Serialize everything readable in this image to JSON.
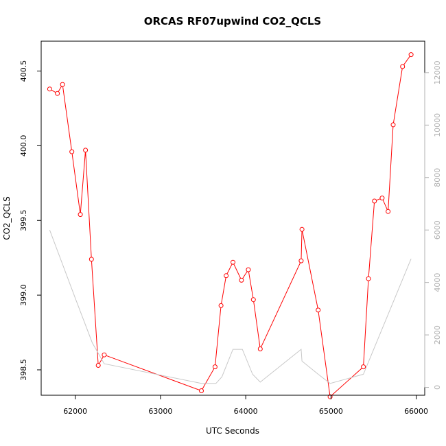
{
  "chart_data": {
    "type": "line",
    "title": "ORCAS RF07upwind CO2_QCLS",
    "xlabel": "UTC Seconds",
    "ylabel": "CO2_QCLS",
    "xlim": [
      61600,
      66100
    ],
    "ylim": [
      398.33,
      400.7
    ],
    "y2lim": [
      -300,
      13200
    ],
    "x_ticks": [
      62000,
      63000,
      64000,
      65000,
      66000
    ],
    "x_tick_labels": [
      "62000",
      "63000",
      "64000",
      "65000",
      "66000"
    ],
    "y_ticks": [
      398.5,
      399.0,
      399.5,
      400.0,
      400.5
    ],
    "y_tick_labels": [
      "398.5",
      "399.0",
      "399.5",
      "400.0",
      "400.5"
    ],
    "y2_ticks": [
      0,
      2000,
      4000,
      6000,
      8000,
      10000,
      12000
    ],
    "y2_tick_labels": [
      "0",
      "2000",
      "4000",
      "6000",
      "8000",
      "10000",
      "12000"
    ],
    "grid": false,
    "legend": "none",
    "colors": {
      "series": "#ff0000",
      "secondary": "#c8c8c8",
      "axis": "#000000",
      "right_axis": "#b0b0b0"
    },
    "series": [
      {
        "axis": "left",
        "style": "line+circle",
        "x": [
          61700,
          61790,
          61850,
          61960,
          62060,
          62120,
          62190,
          62270,
          62340,
          63480,
          63640,
          63710,
          63770,
          63850,
          63950,
          64030,
          64090,
          64170,
          64650,
          64660,
          64850,
          64990,
          65380,
          65440,
          65510,
          65600,
          65670,
          65730,
          65840,
          65940
        ],
        "y": [
          400.38,
          400.35,
          400.41,
          399.96,
          399.54,
          399.97,
          399.24,
          398.53,
          398.6,
          398.36,
          398.52,
          398.93,
          399.13,
          399.22,
          399.1,
          399.17,
          398.97,
          398.64,
          399.23,
          399.44,
          398.9,
          398.32,
          398.52,
          399.11,
          399.63,
          399.65,
          399.56,
          400.14,
          400.53,
          400.61
        ]
      },
      {
        "axis": "right",
        "style": "line",
        "x": [
          61700,
          62000,
          62200,
          62340,
          63480,
          63650,
          63720,
          63850,
          63960,
          64080,
          64170,
          64650,
          64660,
          64850,
          64990,
          65380,
          65940
        ],
        "y": [
          6000,
          3400,
          1700,
          900,
          150,
          150,
          400,
          1450,
          1450,
          500,
          200,
          1450,
          1000,
          500,
          150,
          500,
          4900
        ]
      }
    ]
  }
}
